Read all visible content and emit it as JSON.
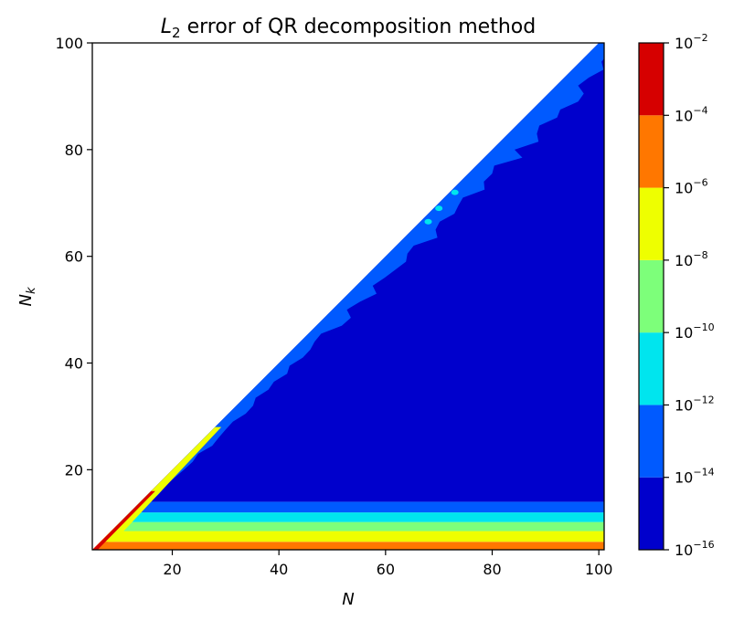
{
  "chart_data": {
    "type": "heatmap",
    "title_main": "L",
    "title_sub": "2",
    "title_rest": " error of QR decomposition method",
    "xlabel": "N",
    "ylabel_main": "N",
    "ylabel_sub": "k",
    "xlim": [
      5,
      101
    ],
    "ylim": [
      5,
      100
    ],
    "x_ticks": [
      20,
      40,
      60,
      80,
      100
    ],
    "y_ticks": [
      20,
      40,
      60,
      80,
      100
    ],
    "x_tick_labels": [
      "20",
      "40",
      "60",
      "80",
      "100"
    ],
    "y_tick_labels": [
      "20",
      "40",
      "60",
      "80",
      "100"
    ],
    "colorbar": {
      "scale": "log",
      "levels": [
        -16,
        -14,
        -12,
        -10,
        -8,
        -6,
        -4,
        -2
      ],
      "tick_base": "10",
      "tick_exponents": [
        "−16",
        "−14",
        "−12",
        "−10",
        "−8",
        "−6",
        "−4",
        "−2"
      ],
      "colors": [
        "#0000cc",
        "#005aff",
        "#00e5ee",
        "#7dff7a",
        "#eeff00",
        "#ff7700",
        "#d60000"
      ]
    },
    "region": "Nk <= N",
    "bands": [
      {
        "nk": [
          5,
          6.5
        ],
        "level": 5
      },
      {
        "nk": [
          6.5,
          8.5
        ],
        "level": 4
      },
      {
        "nk": [
          8.5,
          10.2
        ],
        "level": 3
      },
      {
        "nk": [
          10.2,
          12
        ],
        "level": 2
      },
      {
        "nk": [
          12,
          14
        ],
        "level": 1
      },
      {
        "nk": [
          14,
          100
        ],
        "level": 0
      }
    ],
    "diagonal_band": {
      "width_n": 4,
      "level": 1
    }
  }
}
